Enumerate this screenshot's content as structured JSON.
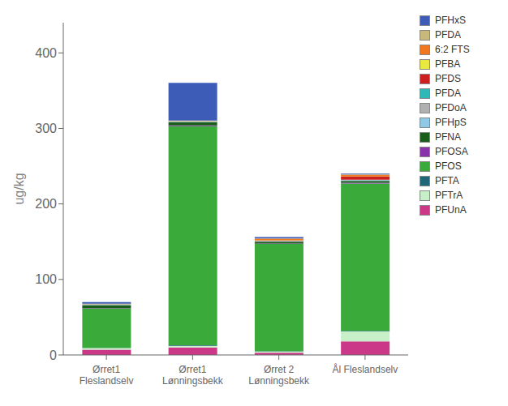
{
  "chart_data": {
    "type": "bar",
    "stacked": true,
    "grid": false,
    "legend": "right",
    "ylabel": "ug/kg",
    "categories": [
      "Ørret1\nFleslandselv",
      "Ørret1\nLønningsbekk",
      "Ørret 2\nLønningsbekk",
      "Ål Fleslandselv"
    ],
    "ylim": [
      0,
      440
    ],
    "yticks": [
      0,
      100,
      200,
      300,
      400
    ],
    "series": [
      {
        "name": "PFUnA",
        "color": "#cc3888",
        "values": [
          7.0,
          10.0,
          3.0,
          18.0
        ]
      },
      {
        "name": "PFTrA",
        "color": "#c8f0c8",
        "values": [
          2.0,
          2.0,
          1.5,
          13.0
        ]
      },
      {
        "name": "PFTA",
        "color": "#206878",
        "values": [
          0.5,
          1.0,
          0.5,
          1.0
        ]
      },
      {
        "name": "PFOS",
        "color": "#3aaa3a",
        "values": [
          52.0,
          290.0,
          142.0,
          195.0
        ]
      },
      {
        "name": "PFOSA",
        "color": "#8833aa",
        "values": [
          0.5,
          1.0,
          0.5,
          1.0
        ]
      },
      {
        "name": "PFNA",
        "color": "#1a5c1a",
        "values": [
          4.0,
          4.0,
          2.5,
          2.5
        ]
      },
      {
        "name": "PFHpS",
        "color": "#90c8e8",
        "values": [
          0.5,
          0.5,
          0.5,
          0.5
        ]
      },
      {
        "name": "PFDoA",
        "color": "#b0b0b0",
        "values": [
          0.3,
          0.3,
          0.3,
          0.5
        ]
      },
      {
        "name": "PFDA",
        "color": "#30b8b8",
        "values": [
          0.3,
          0.3,
          0.3,
          0.5
        ]
      },
      {
        "name": "PFDS",
        "color": "#cc2020",
        "values": [
          0.3,
          0.3,
          0.5,
          4.0
        ]
      },
      {
        "name": "PFBA",
        "color": "#e8e840",
        "values": [
          0.2,
          0.3,
          0.3,
          0.5
        ]
      },
      {
        "name": "6:2 FTS",
        "color": "#f07820",
        "values": [
          0.2,
          0.3,
          2.0,
          2.0
        ]
      },
      {
        "name": "PFDA",
        "color": "#c8b87a",
        "values": [
          0.2,
          0.3,
          0.3,
          0.5
        ]
      },
      {
        "name": "PFHxS",
        "color": "#3d5cb8",
        "values": [
          2.0,
          50.0,
          2.0,
          1.0
        ]
      }
    ]
  }
}
